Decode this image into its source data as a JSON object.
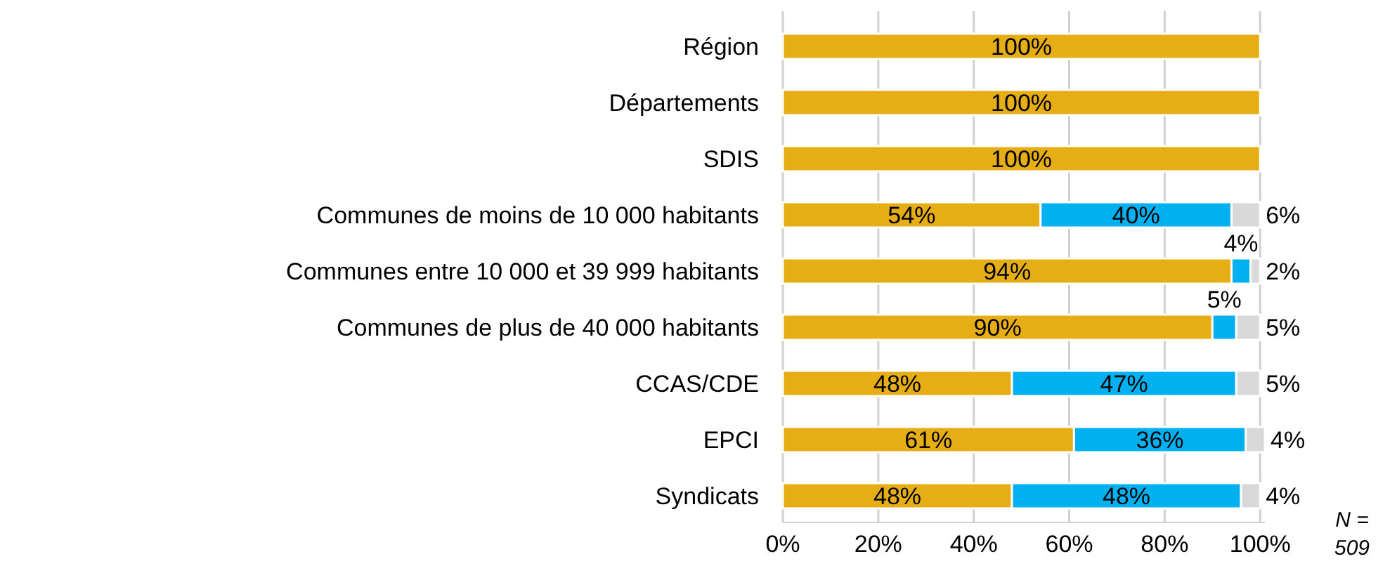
{
  "chart_data": {
    "type": "bar",
    "orientation": "horizontal",
    "stacked": true,
    "categories": [
      "Région",
      "Départements",
      "SDIS",
      "Communes de moins de 10 000 habitants",
      "Communes entre 10 000 et 39 999 habitants",
      "Communes de plus de 40 000 habitants",
      "CCAS/CDE",
      "EPCI",
      "Syndicats"
    ],
    "series": [
      {
        "color": "#e6ae14",
        "values": [
          100,
          100,
          100,
          54,
          94,
          90,
          48,
          61,
          48
        ],
        "value_labels": [
          "100%",
          "100%",
          "100%",
          "54%",
          "94%",
          "90%",
          "48%",
          "61%",
          "48%"
        ]
      },
      {
        "color": "#00b0f0",
        "values": [
          null,
          null,
          null,
          40,
          4,
          5,
          47,
          36,
          48
        ],
        "value_labels": [
          null,
          null,
          null,
          "40%",
          "4%",
          "5%",
          "47%",
          "36%",
          "48%"
        ]
      },
      {
        "color": "#d9d9d9",
        "values": [
          null,
          null,
          null,
          6,
          2,
          5,
          5,
          4,
          4
        ],
        "value_labels": [
          null,
          null,
          null,
          "6%",
          "2%",
          "5%",
          "5%",
          "4%",
          "4%"
        ]
      }
    ],
    "xlim": [
      0,
      101
    ],
    "xticks": [
      {
        "value": 0,
        "label": "0%"
      },
      {
        "value": 20,
        "label": "20%"
      },
      {
        "value": 40,
        "label": "40%"
      },
      {
        "value": 60,
        "label": "60%"
      },
      {
        "value": 80,
        "label": "80%"
      },
      {
        "value": 100,
        "label": "100%"
      }
    ],
    "grid": "x",
    "annotations": [
      "N =\n509"
    ]
  }
}
